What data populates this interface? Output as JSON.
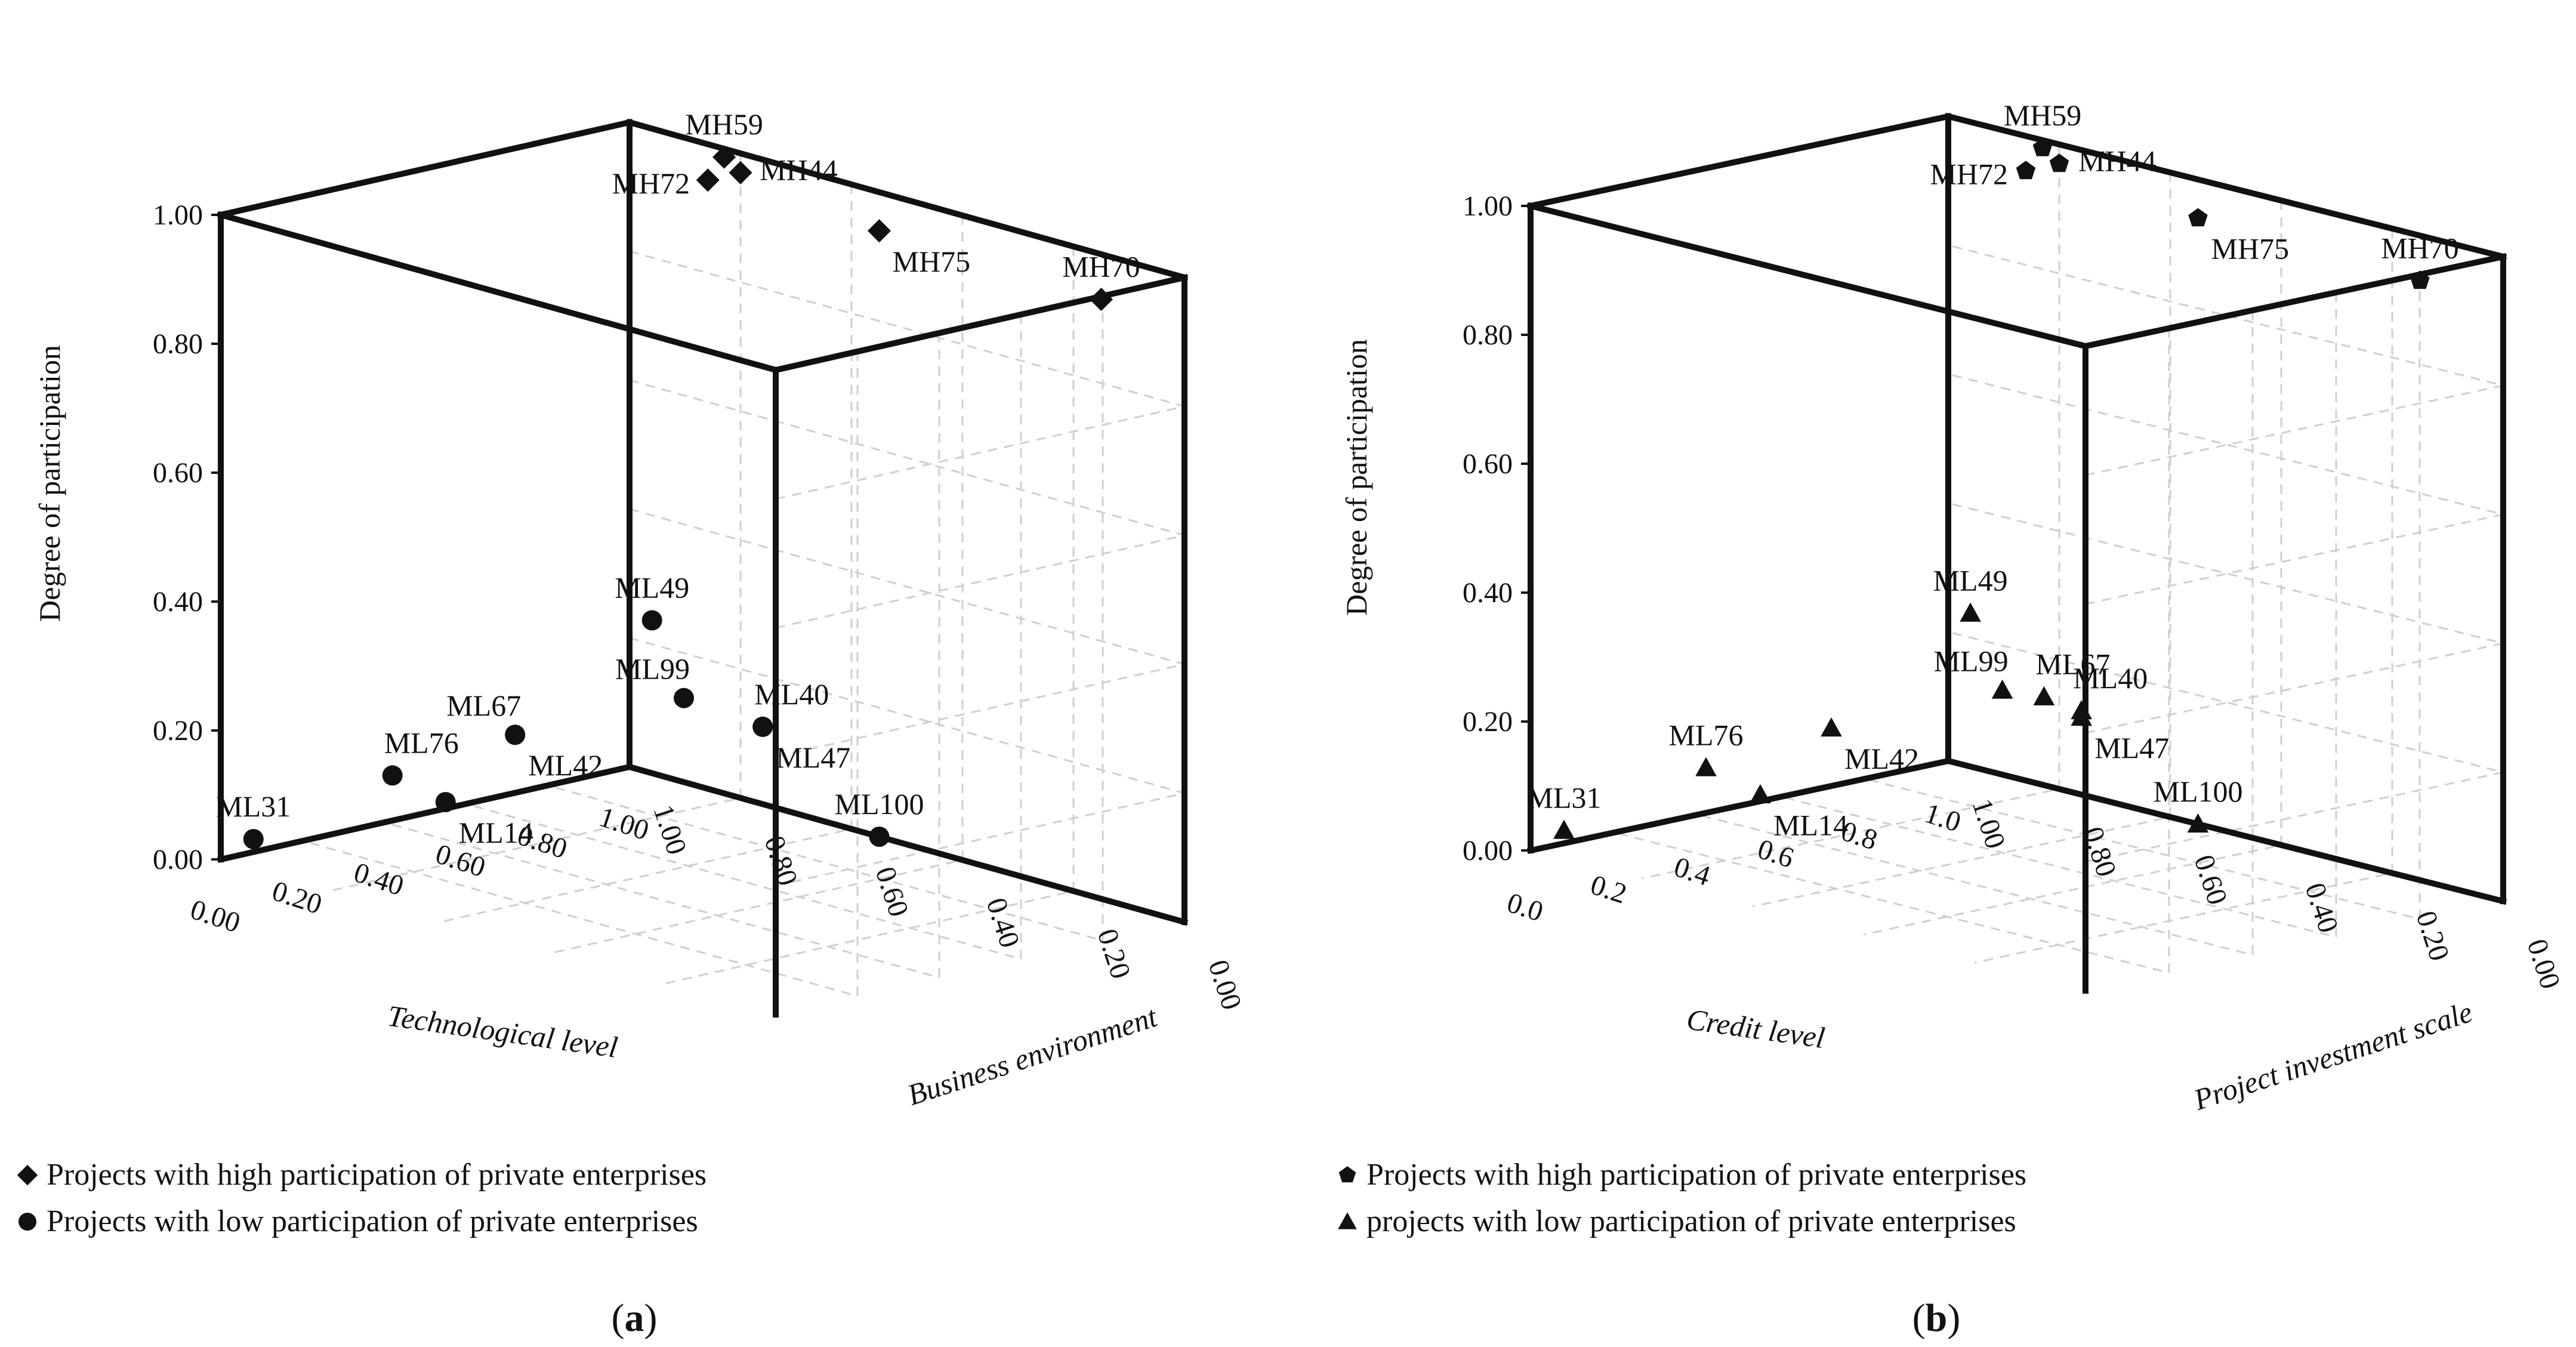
{
  "chart_data": [
    {
      "type": "scatter",
      "projection": "3d",
      "panel_caption": "(a)",
      "caption_letter": "a",
      "xlabel": "Technological level",
      "zlabel": "Business environment",
      "ylabel": "Degree of participation",
      "xticks": [
        "0.00",
        "0.20",
        "0.40",
        "0.60",
        "0.80",
        "1.00"
      ],
      "zticks": [
        "0.00",
        "0.20",
        "0.40",
        "0.60",
        "0.80",
        "1.00"
      ],
      "yticks": [
        "0.00",
        "0.20",
        "0.40",
        "0.60",
        "0.80",
        "1.00"
      ],
      "xlim": [
        0,
        1
      ],
      "zlim": [
        0,
        1
      ],
      "ylim": [
        0,
        1
      ],
      "series": [
        {
          "name": "Projects with high participation of private enterprises",
          "marker": "diamond",
          "points": [
            {
              "label": "MH72",
              "x": 0.92,
              "z": 0.8,
              "y": 0.97,
              "label_pos": "left"
            },
            {
              "label": "MH59",
              "x": 0.96,
              "z": 0.8,
              "y": 1.0,
              "label_pos": "above"
            },
            {
              "label": "MH44",
              "x": 1.0,
              "z": 0.8,
              "y": 0.97,
              "label_pos": "right"
            },
            {
              "label": "MH75",
              "x": 1.0,
              "z": 0.55,
              "y": 0.94,
              "label_pos": "below-right"
            },
            {
              "label": "MH70",
              "x": 1.0,
              "z": 0.15,
              "y": 0.93,
              "label_pos": "above"
            }
          ]
        },
        {
          "name": "Projects with low participation of private enterprises",
          "marker": "circle",
          "points": [
            {
              "label": "ML31",
              "x": 0.08,
              "z": 1.0,
              "y": 0.02,
              "label_pos": "above"
            },
            {
              "label": "ML76",
              "x": 0.42,
              "z": 1.0,
              "y": 0.07,
              "label_pos": "above-right"
            },
            {
              "label": "ML14",
              "x": 0.55,
              "z": 1.0,
              "y": 0.01,
              "label_pos": "below-right"
            },
            {
              "label": "ML67",
              "x": 0.72,
              "z": 1.0,
              "y": 0.09,
              "label_pos": "above-left"
            },
            {
              "label": "ML42",
              "x": 0.72,
              "z": 1.0,
              "y": 0.09,
              "label_pos": "below-right"
            },
            {
              "label": "ML49",
              "x": 0.96,
              "z": 0.93,
              "y": 0.25,
              "label_pos": "above"
            },
            {
              "label": "ML99",
              "x": 0.97,
              "z": 0.88,
              "y": 0.14,
              "label_pos": "above-left"
            },
            {
              "label": "ML40",
              "x": 1.0,
              "z": 0.76,
              "y": 0.12,
              "label_pos": "above-right"
            },
            {
              "label": "ML47",
              "x": 1.0,
              "z": 0.76,
              "y": 0.12,
              "label_pos": "below-right"
            },
            {
              "label": "ML100",
              "x": 1.0,
              "z": 0.55,
              "y": 0.0,
              "label_pos": "above"
            }
          ]
        }
      ]
    },
    {
      "type": "scatter",
      "projection": "3d",
      "panel_caption": "(b)",
      "caption_letter": "b",
      "xlabel": "Credit level",
      "zlabel": "Project investment scale",
      "ylabel": "Degree of participation",
      "xticks": [
        "0.0",
        "0.2",
        "0.4",
        "0.6",
        "0.8",
        "1.0"
      ],
      "zticks": [
        "0.00",
        "0.20",
        "0.40",
        "0.60",
        "0.80",
        "1.00"
      ],
      "yticks": [
        "0.00",
        "0.20",
        "0.40",
        "0.60",
        "0.80",
        "1.00"
      ],
      "xlim": [
        0,
        1
      ],
      "zlim": [
        0,
        1
      ],
      "ylim": [
        0,
        1
      ],
      "series": [
        {
          "name": "Projects with high participation of private enterprises",
          "marker": "pentagon",
          "points": [
            {
              "label": "MH72",
              "x": 0.92,
              "z": 0.8,
              "y": 0.97,
              "label_pos": "left"
            },
            {
              "label": "MH59",
              "x": 0.96,
              "z": 0.8,
              "y": 1.0,
              "label_pos": "above"
            },
            {
              "label": "MH44",
              "x": 1.0,
              "z": 0.8,
              "y": 0.97,
              "label_pos": "right"
            },
            {
              "label": "MH75",
              "x": 1.0,
              "z": 0.55,
              "y": 0.94,
              "label_pos": "below-right"
            },
            {
              "label": "MH70",
              "x": 1.0,
              "z": 0.15,
              "y": 0.93,
              "label_pos": "above"
            }
          ]
        },
        {
          "name": "projects with low participation of private enterprises",
          "marker": "triangle",
          "points": [
            {
              "label": "ML31",
              "x": 0.08,
              "z": 1.0,
              "y": 0.02,
              "label_pos": "above"
            },
            {
              "label": "ML76",
              "x": 0.42,
              "z": 1.0,
              "y": 0.07,
              "label_pos": "above"
            },
            {
              "label": "ML14",
              "x": 0.55,
              "z": 1.0,
              "y": 0.01,
              "label_pos": "below-right"
            },
            {
              "label": "ML42",
              "x": 0.72,
              "z": 1.0,
              "y": 0.09,
              "label_pos": "below-right"
            },
            {
              "label": "ML49",
              "x": 0.96,
              "z": 0.93,
              "y": 0.25,
              "label_pos": "above"
            },
            {
              "label": "ML99",
              "x": 0.97,
              "z": 0.88,
              "y": 0.14,
              "label_pos": "above-left"
            },
            {
              "label": "ML67",
              "x": 0.99,
              "z": 0.82,
              "y": 0.14,
              "label_pos": "above-right"
            },
            {
              "label": "ML40",
              "x": 1.0,
              "z": 0.76,
              "y": 0.13,
              "label_pos": "above-right"
            },
            {
              "label": "ML47",
              "x": 1.0,
              "z": 0.76,
              "y": 0.12,
              "label_pos": "below-right"
            },
            {
              "label": "ML100",
              "x": 1.0,
              "z": 0.55,
              "y": 0.0,
              "label_pos": "above"
            }
          ]
        }
      ]
    }
  ]
}
